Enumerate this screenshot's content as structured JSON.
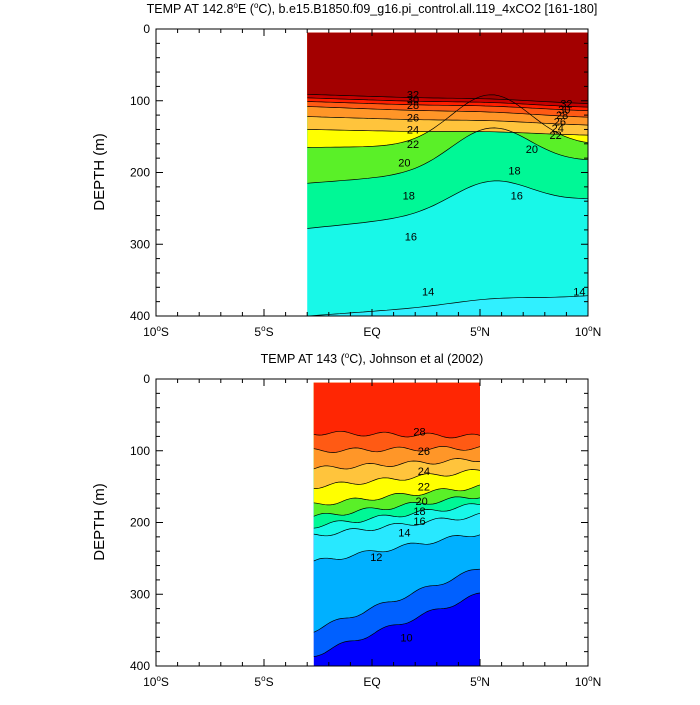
{
  "chart_data": [
    {
      "type": "contour",
      "title_pre": "TEMP AT 142.8",
      "title_mid": "E (",
      "title_post": "C), b.e15.B1850.f09_g16.pi_control.all.119_4xCO2 [161-180]",
      "degree_symbol": "o",
      "ylabel": "DEPTH (m)",
      "xlim": [
        -10,
        10
      ],
      "ylim": [
        0,
        400
      ],
      "y_inverted": true,
      "xticks": [
        {
          "x": -10,
          "num": "10",
          "hem": "S"
        },
        {
          "x": -5,
          "num": "5",
          "hem": "S"
        },
        {
          "x": 0,
          "num": "EQ",
          "hem": ""
        },
        {
          "x": 5,
          "num": "5",
          "hem": "N"
        },
        {
          "x": 10,
          "num": "10",
          "hem": "N"
        }
      ],
      "yticks": [
        0,
        100,
        200,
        300,
        400
      ],
      "data_x_range": [
        -3,
        10
      ],
      "data_top_depth": 5,
      "fill_floor": 14,
      "isotherms": [
        {
          "value": 32,
          "depth_w": 91,
          "depth_e": 104
        },
        {
          "value": 30,
          "depth_w": 96,
          "depth_e": 109
        },
        {
          "value": 28,
          "depth_w": 101,
          "depth_e": 114
        },
        {
          "value": 26,
          "depth_w": 108,
          "depth_e": 123
        },
        {
          "value": 24,
          "depth_w": 122,
          "depth_e": 134
        },
        {
          "value": 22,
          "depth_w": 140,
          "depth_e": 148
        },
        {
          "value": 20,
          "depth_w": 165,
          "depth_e": 162
        },
        {
          "value": 18,
          "depth_w": 215,
          "depth_e": 185
        },
        {
          "value": 16,
          "depth_w": 278,
          "depth_e": 238
        },
        {
          "value": 14,
          "depth_w": 400,
          "depth_e": 372
        }
      ],
      "contour_labels": [
        {
          "text": "32",
          "x": 1.9,
          "y": 91
        },
        {
          "text": "30",
          "x": 1.9,
          "y": 98
        },
        {
          "text": "28",
          "x": 1.9,
          "y": 106
        },
        {
          "text": "26",
          "x": 1.9,
          "y": 123
        },
        {
          "text": "24",
          "x": 1.9,
          "y": 140
        },
        {
          "text": "22",
          "x": 1.9,
          "y": 160
        },
        {
          "text": "20",
          "x": 1.5,
          "y": 186
        },
        {
          "text": "18",
          "x": 1.7,
          "y": 232
        },
        {
          "text": "16",
          "x": 1.8,
          "y": 289
        },
        {
          "text": "14",
          "x": 2.6,
          "y": 366
        },
        {
          "text": "32",
          "x": 9.0,
          "y": 104
        },
        {
          "text": "30",
          "x": 8.9,
          "y": 112
        },
        {
          "text": "28",
          "x": 8.8,
          "y": 120
        },
        {
          "text": "26",
          "x": 8.7,
          "y": 129
        },
        {
          "text": "24",
          "x": 8.6,
          "y": 138
        },
        {
          "text": "22",
          "x": 8.5,
          "y": 148
        },
        {
          "text": "20",
          "x": 7.4,
          "y": 167
        },
        {
          "text": "18",
          "x": 6.6,
          "y": 197
        },
        {
          "text": "16",
          "x": 6.7,
          "y": 232
        },
        {
          "text": "14",
          "x": 9.6,
          "y": 366
        }
      ]
    },
    {
      "type": "contour",
      "title_pre": "TEMP AT 143 (",
      "title_post": "C), Johnson et al (2002)",
      "degree_symbol": "o",
      "ylabel": "DEPTH (m)",
      "xlim": [
        -10,
        10
      ],
      "ylim": [
        0,
        400
      ],
      "y_inverted": true,
      "xticks": [
        {
          "x": -10,
          "num": "10",
          "hem": "S"
        },
        {
          "x": -5,
          "num": "5",
          "hem": "S"
        },
        {
          "x": 0,
          "num": "EQ",
          "hem": ""
        },
        {
          "x": 5,
          "num": "5",
          "hem": "N"
        },
        {
          "x": 10,
          "num": "10",
          "hem": "N"
        }
      ],
      "yticks": [
        0,
        100,
        200,
        300,
        400
      ],
      "data_x_range": [
        -2.7,
        5
      ],
      "data_top_depth": 5,
      "fill_floor": 8,
      "isotherms": [
        {
          "value": 28,
          "depth_w": 75,
          "depth_e": 80
        },
        {
          "value": 26,
          "depth_w": 100,
          "depth_e": 96
        },
        {
          "value": 24,
          "depth_w": 125,
          "depth_e": 112
        },
        {
          "value": 22,
          "depth_w": 150,
          "depth_e": 128
        },
        {
          "value": 20,
          "depth_w": 175,
          "depth_e": 150
        },
        {
          "value": 18,
          "depth_w": 192,
          "depth_e": 163
        },
        {
          "value": 16,
          "depth_w": 205,
          "depth_e": 175
        },
        {
          "value": 14,
          "depth_w": 218,
          "depth_e": 190
        },
        {
          "value": 12,
          "depth_w": 255,
          "depth_e": 215
        },
        {
          "value": 10,
          "depth_w": 350,
          "depth_e": 264
        },
        {
          "value": 9,
          "depth_w": 385,
          "depth_e": 300
        }
      ],
      "contour_labels": [
        {
          "text": "28",
          "x": 2.2,
          "y": 73
        },
        {
          "text": "26",
          "x": 2.4,
          "y": 100
        },
        {
          "text": "24",
          "x": 2.4,
          "y": 128
        },
        {
          "text": "22",
          "x": 2.4,
          "y": 150
        },
        {
          "text": "20",
          "x": 2.3,
          "y": 170
        },
        {
          "text": "18",
          "x": 2.2,
          "y": 184
        },
        {
          "text": "16",
          "x": 2.2,
          "y": 198
        },
        {
          "text": "14",
          "x": 1.5,
          "y": 214
        },
        {
          "text": "12",
          "x": 0.2,
          "y": 248
        },
        {
          "text": "10",
          "x": 1.6,
          "y": 360
        }
      ]
    }
  ]
}
